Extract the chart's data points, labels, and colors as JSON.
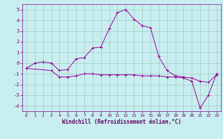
{
  "xlabel": "Windchill (Refroidissement éolien,°C)",
  "line1_x": [
    0,
    1,
    2,
    3,
    4,
    5,
    6,
    7,
    8,
    9,
    10,
    11,
    12,
    13,
    14,
    15,
    16,
    17,
    18,
    19,
    20,
    21,
    22,
    23
  ],
  "line1_y": [
    -0.5,
    0.0,
    0.1,
    0.0,
    -0.7,
    -0.6,
    0.4,
    0.5,
    1.4,
    1.5,
    3.2,
    4.7,
    5.0,
    4.1,
    3.5,
    3.3,
    0.6,
    -0.7,
    -1.2,
    -1.3,
    -1.4,
    -1.7,
    -1.8,
    -1.1
  ],
  "line2_x": [
    0,
    3,
    4,
    5,
    6,
    7,
    8,
    9,
    10,
    11,
    12,
    13,
    14,
    15,
    16,
    17,
    18,
    19,
    20,
    21,
    22,
    23
  ],
  "line2_y": [
    -0.5,
    -0.7,
    -1.3,
    -1.3,
    -1.2,
    -1.0,
    -1.0,
    -1.1,
    -1.1,
    -1.1,
    -1.1,
    -1.1,
    -1.2,
    -1.2,
    -1.2,
    -1.3,
    -1.3,
    -1.4,
    -1.7,
    -4.2,
    -3.0,
    -1.0
  ],
  "line_color": "#990099",
  "bg_color": "#c8eef0",
  "grid_color": "#a0c8c0",
  "axes_color": "#800080",
  "text_color": "#660066",
  "xlim": [
    -0.5,
    23.5
  ],
  "ylim": [
    -4.5,
    5.5
  ],
  "yticks": [
    -4,
    -3,
    -2,
    -1,
    0,
    1,
    2,
    3,
    4,
    5
  ],
  "xticks": [
    0,
    1,
    2,
    3,
    4,
    5,
    6,
    7,
    8,
    9,
    10,
    11,
    12,
    13,
    14,
    15,
    16,
    17,
    18,
    19,
    20,
    21,
    22,
    23
  ]
}
